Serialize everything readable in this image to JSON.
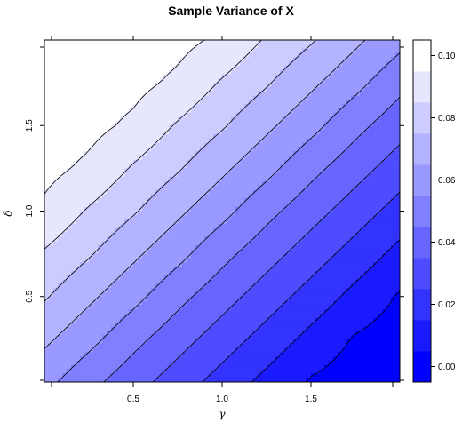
{
  "chart_data": {
    "type": "heatmap",
    "title": "Sample Variance of X",
    "xlabel": "γ",
    "ylabel": "δ",
    "xlim": [
      0.0,
      2.0
    ],
    "ylim": [
      0.0,
      2.0
    ],
    "x_ticks": [
      0.5,
      1.0,
      1.5
    ],
    "x_tick_labels": [
      "0.5",
      "1.0",
      "1.5"
    ],
    "y_ticks": [
      0.5,
      1.0,
      1.5
    ],
    "y_tick_labels": [
      "0.5",
      "1.0",
      "1.5"
    ],
    "colorbar": {
      "range": [
        -0.005,
        0.105
      ],
      "levels": [
        -0.005,
        0.005,
        0.015,
        0.025,
        0.035,
        0.045,
        0.055,
        0.065,
        0.075,
        0.085,
        0.095,
        0.105
      ],
      "ticks": [
        0.0,
        0.02,
        0.04,
        0.06,
        0.08,
        0.1
      ],
      "tick_labels": [
        "0.00",
        "0.02",
        "0.04",
        "0.06",
        "0.08",
        "0.10"
      ],
      "low_color": "#0000ff",
      "high_color": "#ffffff"
    },
    "grid": false,
    "legend": "colorbar-right",
    "surface_note": "approximately v = 0.095 - 0.075*(γ - δ + 1)/2, highest at top-left, lowest at bottom-right",
    "surface": {
      "x": [
        0.0,
        0.25,
        0.5,
        0.75,
        1.0,
        1.25,
        1.5,
        1.75,
        2.0
      ],
      "y": [
        0.0,
        0.25,
        0.5,
        0.75,
        1.0,
        1.25,
        1.5,
        1.75,
        2.0
      ],
      "values_rows_by_y": [
        [
          0.058,
          0.048,
          0.039,
          0.03,
          0.021,
          0.012,
          0.004,
          0.0,
          0.0
        ],
        [
          0.067,
          0.058,
          0.048,
          0.039,
          0.03,
          0.021,
          0.012,
          0.004,
          0.0
        ],
        [
          0.076,
          0.067,
          0.058,
          0.048,
          0.039,
          0.03,
          0.021,
          0.012,
          0.004
        ],
        [
          0.084,
          0.076,
          0.067,
          0.058,
          0.048,
          0.039,
          0.03,
          0.021,
          0.012
        ],
        [
          0.093,
          0.084,
          0.076,
          0.067,
          0.058,
          0.048,
          0.039,
          0.03,
          0.021
        ],
        [
          0.098,
          0.093,
          0.084,
          0.076,
          0.067,
          0.058,
          0.048,
          0.039,
          0.03
        ],
        [
          0.101,
          0.098,
          0.093,
          0.084,
          0.076,
          0.067,
          0.058,
          0.048,
          0.039
        ],
        [
          0.102,
          0.101,
          0.098,
          0.093,
          0.084,
          0.076,
          0.067,
          0.058,
          0.048
        ],
        [
          0.103,
          0.102,
          0.101,
          0.098,
          0.093,
          0.084,
          0.076,
          0.067,
          0.058
        ]
      ]
    }
  }
}
